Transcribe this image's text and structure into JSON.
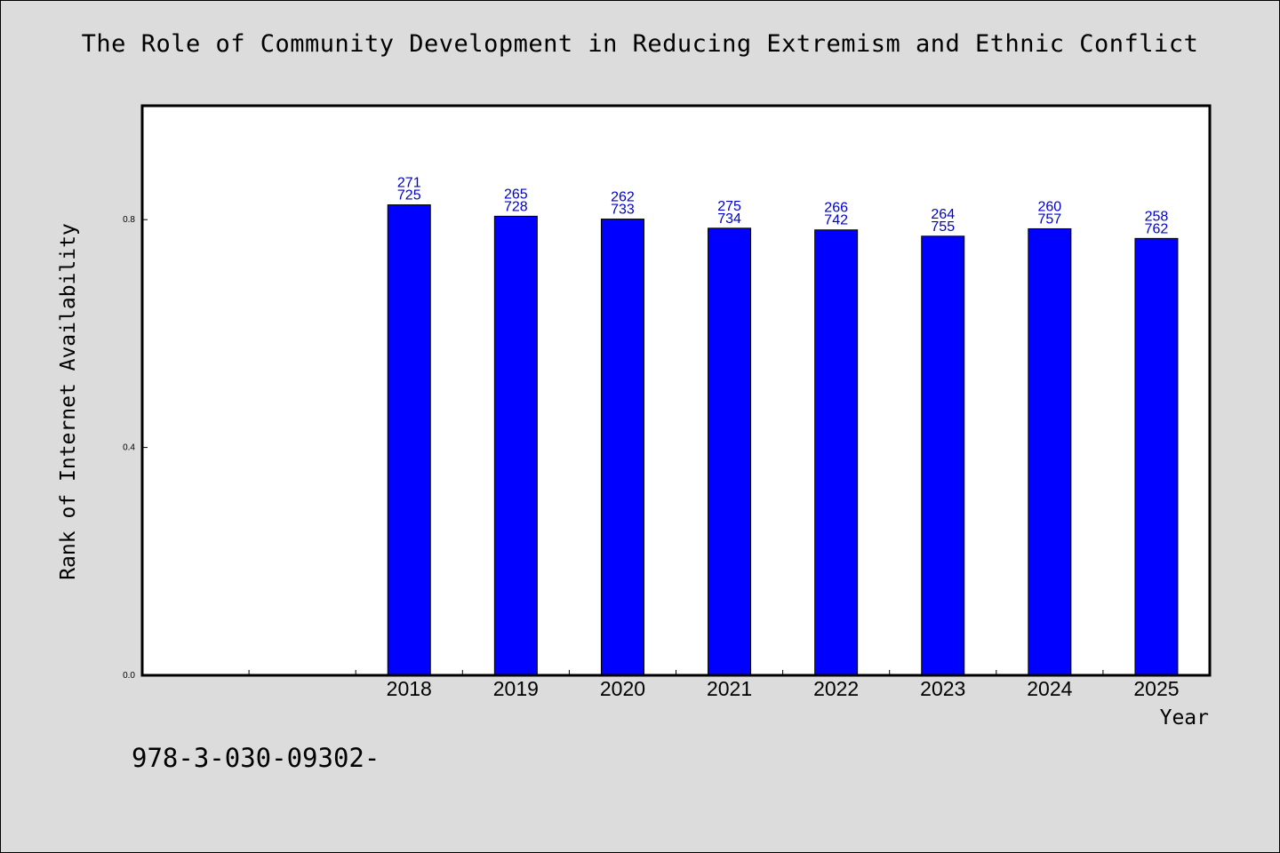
{
  "chart_data": {
    "type": "bar",
    "title": "The Role of Community Development in Reducing Extremism and Ethnic Conflict",
    "xlabel": "Year",
    "ylabel": "Rank of Internet Availability",
    "ylim": [
      0,
      1.0
    ],
    "yticks": [
      "0.0",
      "0.4",
      "0.8"
    ],
    "categories": [
      "2018",
      "2019",
      "2020",
      "2021",
      "2022",
      "2023",
      "2024",
      "2025"
    ],
    "values": [
      0.826,
      0.806,
      0.801,
      0.785,
      0.782,
      0.771,
      0.784,
      0.767
    ],
    "data_labels_top": [
      "271",
      "265",
      "262",
      "275",
      "266",
      "264",
      "260",
      "258"
    ],
    "data_labels_bottom": [
      "725",
      "728",
      "733",
      "734",
      "742",
      "755",
      "757",
      "762"
    ],
    "bar_color": "#0000ff",
    "label_color": "#0000cc",
    "background_color": "#dcdcdc",
    "plot_background": "#ffffff",
    "grid": false,
    "legend": "none"
  },
  "footer": {
    "code": "978-3-030-09302-"
  }
}
